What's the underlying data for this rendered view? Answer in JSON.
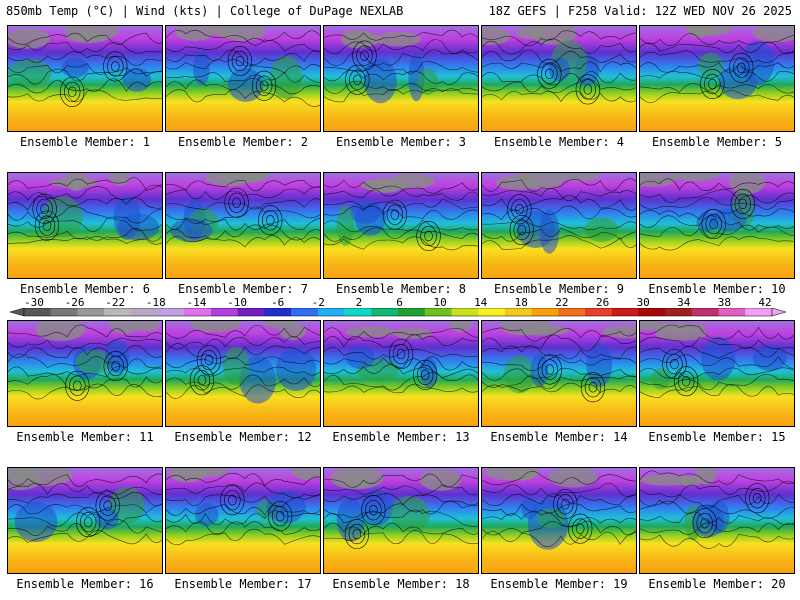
{
  "header": {
    "left": "850mb Temp (°C) | Wind (kts) | College of DuPage NEXLAB",
    "right": "18Z GEFS | F258 Valid: 12Z WED NOV 26 2025"
  },
  "colorbar": {
    "ticks": [
      "-30",
      "-26",
      "-22",
      "-18",
      "-14",
      "-10",
      "-6",
      "-2",
      "2",
      "6",
      "10",
      "14",
      "18",
      "22",
      "26",
      "30",
      "34",
      "38",
      "42"
    ],
    "colors": [
      "#585858",
      "#787878",
      "#989898",
      "#b8b8b8",
      "#b8a8c8",
      "#c0a0e0",
      "#e070f0",
      "#b040e0",
      "#7020c0",
      "#2030d0",
      "#3070f0",
      "#20b0f0",
      "#10d8c8",
      "#10b878",
      "#20a030",
      "#70c020",
      "#c8e020",
      "#f8f020",
      "#f8c818",
      "#f8a010",
      "#f07020",
      "#e84028",
      "#d01818",
      "#a80808",
      "#a02020",
      "#c03070",
      "#e060c0",
      "#f0a0f0"
    ]
  },
  "panels": [
    {
      "label": "Ensemble Member: 1",
      "seed": 1
    },
    {
      "label": "Ensemble Member: 2",
      "seed": 2
    },
    {
      "label": "Ensemble Member: 3",
      "seed": 3
    },
    {
      "label": "Ensemble Member: 4",
      "seed": 4
    },
    {
      "label": "Ensemble Member: 5",
      "seed": 5
    },
    {
      "label": "Ensemble Member: 6",
      "seed": 6
    },
    {
      "label": "Ensemble Member: 7",
      "seed": 7
    },
    {
      "label": "Ensemble Member: 8",
      "seed": 8
    },
    {
      "label": "Ensemble Member: 9",
      "seed": 9
    },
    {
      "label": "Ensemble Member: 10",
      "seed": 10
    },
    {
      "label": "Ensemble Member: 11",
      "seed": 11
    },
    {
      "label": "Ensemble Member: 12",
      "seed": 12
    },
    {
      "label": "Ensemble Member: 13",
      "seed": 13
    },
    {
      "label": "Ensemble Member: 14",
      "seed": 14
    },
    {
      "label": "Ensemble Member: 15",
      "seed": 15
    },
    {
      "label": "Ensemble Member: 16",
      "seed": 16
    },
    {
      "label": "Ensemble Member: 17",
      "seed": 17
    },
    {
      "label": "Ensemble Member: 18",
      "seed": 18
    },
    {
      "label": "Ensemble Member: 19",
      "seed": 19
    },
    {
      "label": "Ensemble Member: 20",
      "seed": 20
    }
  ]
}
